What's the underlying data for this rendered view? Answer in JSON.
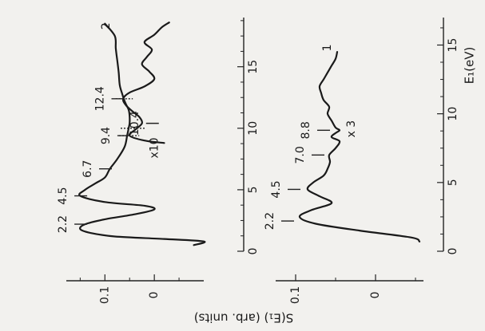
{
  "chart_data": [
    {
      "type": "line",
      "panel": "top",
      "xlabel": "",
      "ylabel": "S(E₁) (arb. units)",
      "xlim": [
        0,
        19
      ],
      "ylim": [
        -0.1,
        0.17
      ],
      "x_ticks": [
        "0",
        "5",
        "10",
        "15"
      ],
      "y_ticks": [
        "0.1",
        "0"
      ],
      "series": [
        {
          "name": "2",
          "x": [
            0.5,
            0.8,
            1.0,
            1.2,
            1.5,
            1.8,
            2.2,
            2.6,
            3.0,
            3.4,
            3.7,
            4.0,
            4.5,
            5.0,
            5.5,
            6.0,
            6.7,
            7.5,
            8.5,
            9.4,
            10.0,
            10.4,
            11.0,
            11.5,
            12.0,
            12.4,
            12.8,
            13.5,
            14.5,
            15.5,
            16.5,
            17.5,
            18.5
          ],
          "y": [
            -0.08,
            -0.1,
            -0.02,
            0.08,
            0.13,
            0.15,
            0.14,
            0.1,
            0.04,
            0.0,
            0.02,
            0.1,
            0.15,
            0.14,
            0.12,
            0.1,
            0.09,
            0.075,
            0.06,
            0.055,
            0.052,
            0.05,
            0.05,
            0.052,
            0.058,
            0.062,
            0.065,
            0.07,
            0.072,
            0.075,
            0.078,
            0.08,
            0.1
          ]
        },
        {
          "name": "x10",
          "x": [
            8.8,
            9.0,
            9.4,
            9.9,
            10.4,
            10.9,
            11.4,
            11.9,
            12.4,
            12.9,
            13.4,
            14.0,
            14.6,
            15.2,
            15.8,
            16.4,
            17.0,
            17.6,
            18.2,
            18.6
          ],
          "y": [
            -0.02,
            0.02,
            0.05,
            0.038,
            0.025,
            0.03,
            0.045,
            0.058,
            0.063,
            0.05,
            0.02,
            0.0,
            0.01,
            0.025,
            0.015,
            0.005,
            0.02,
            0.0,
            -0.015,
            -0.03
          ]
        }
      ],
      "annotations": [
        "2.2",
        "4.5",
        "6.7",
        "9.4",
        "12.4",
        "10.4",
        "2",
        "x10"
      ]
    },
    {
      "type": "line",
      "panel": "bottom",
      "xlabel": "E₁(eV)",
      "ylabel": "",
      "xlim": [
        0,
        17
      ],
      "ylim": [
        -0.06,
        0.12
      ],
      "x_ticks": [
        "0",
        "5",
        "10",
        "15"
      ],
      "y_ticks": [
        "0.1",
        "0"
      ],
      "series": [
        {
          "name": "1",
          "x": [
            0.7,
            1.0,
            1.5,
            2.0,
            2.5,
            3.0,
            3.5,
            4.0,
            4.5,
            5.0,
            5.5,
            6.0,
            6.5,
            7.0,
            7.5,
            8.0,
            8.3,
            8.6,
            8.8,
            9.0,
            9.5,
            10.0,
            10.5,
            11.0,
            11.5,
            12.0,
            12.5,
            13.0,
            13.5,
            14.0,
            14.5
          ],
          "y": [
            -0.055,
            -0.045,
            0.02,
            0.075,
            0.095,
            0.08,
            0.055,
            0.07,
            0.085,
            0.078,
            0.065,
            0.06,
            0.057,
            0.058,
            0.05,
            0.045,
            0.055,
            0.05,
            0.045,
            0.05,
            0.055,
            0.06,
            0.058,
            0.065,
            0.068,
            0.07,
            0.065,
            0.06,
            0.055,
            0.05,
            0.048
          ]
        }
      ],
      "annotations": [
        "2.2",
        "4.5",
        "7.0",
        "8.8",
        "x 3",
        "1"
      ]
    }
  ]
}
